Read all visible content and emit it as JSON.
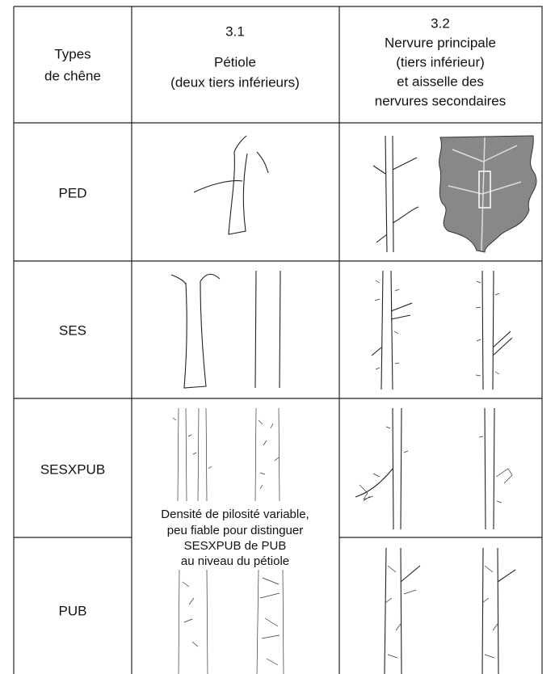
{
  "header": {
    "col0": [
      "Types",
      "de chêne"
    ],
    "col1": {
      "number": "3.1",
      "label": [
        "Pétiole",
        "(deux tiers inférieurs)"
      ]
    },
    "col2": {
      "number": "3.2",
      "label": [
        "Nervure principale",
        "(tiers inférieur)",
        "et aisselle des",
        "nervures secondaires"
      ]
    }
  },
  "rows": [
    "PED",
    "SES",
    "SESXPUB",
    "PUB"
  ],
  "note": [
    "Densité de pilosité variable,",
    "peu fiable pour distinguer",
    "SESXPUB de PUB",
    "au niveau du pétiole"
  ]
}
